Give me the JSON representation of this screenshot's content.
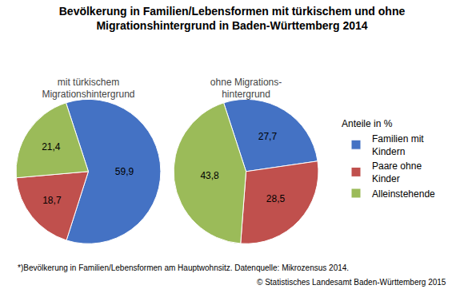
{
  "chart_data": {
    "type": "pie",
    "title": "Bevölkerung in Familien/Lebensformen mit türkischem und ohne\nMigrationshintergrund in Baden-Württemberg 2014",
    "categories": [
      "Familien mit\nKindern",
      "Paare ohne\nKinder",
      "Alleinstehende"
    ],
    "colors": [
      "#4472C4",
      "#C0504D",
      "#9BBB59"
    ],
    "series": [
      {
        "name": "mit türkischem\nMigrationshintergrund",
        "values": [
          59.9,
          18.7,
          21.4
        ],
        "value_labels": [
          "59,9",
          "18,7",
          "21,4"
        ]
      },
      {
        "name": "ohne Migrations-\nhintergrund",
        "values": [
          27.7,
          28.5,
          43.8
        ],
        "value_labels": [
          "27,7",
          "28,5",
          "43,8"
        ]
      }
    ],
    "data_labels": true,
    "legend": "right",
    "annotations": [
      "Anteile in %",
      "*)Bevölkerung in Familien/Lebensformen am Hauptwohnsitz. Datenquelle: Mikrozensus 2014.",
      "© Statistisches Landesamt Baden-Württemberg 2015"
    ]
  }
}
